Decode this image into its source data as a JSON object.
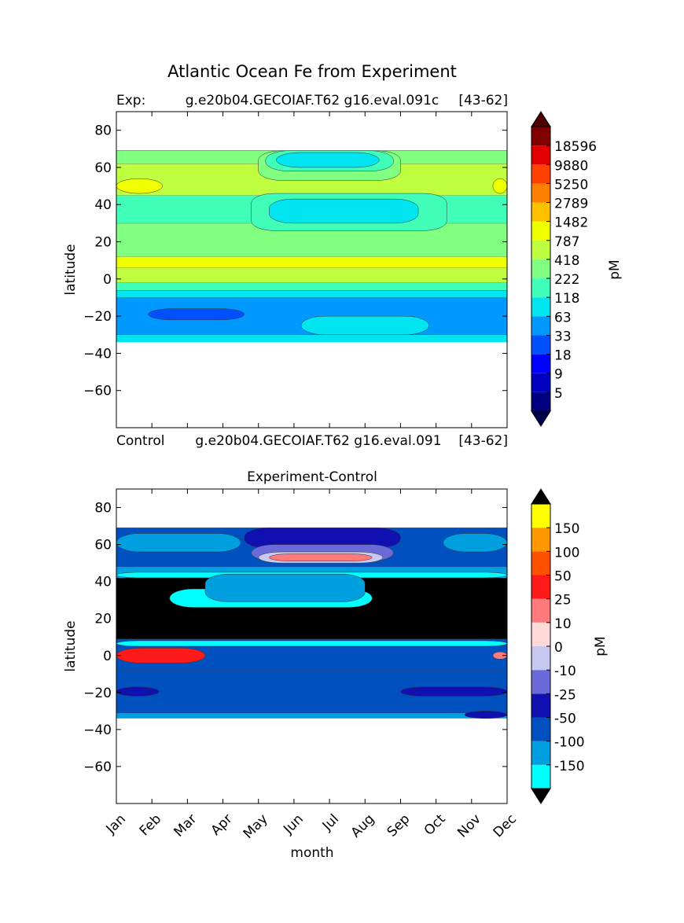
{
  "figure_title": "Atlantic Ocean Fe from Experiment",
  "chart_data": [
    {
      "type": "heatmap",
      "subtype": "filled-contour",
      "title_left": "Exp:",
      "title_center": "g.e20b04.GECOIAF.T62 g16.eval.091c",
      "title_right": "[43-62]",
      "ylabel": "latitude",
      "xlabel": "",
      "ylim": [
        -80,
        90
      ],
      "yticks": [
        80,
        60,
        40,
        20,
        0,
        -20,
        -40,
        -60
      ],
      "ytick_labels": [
        "80",
        "60",
        "40",
        "20",
        "0",
        "−20",
        "−40",
        "−60"
      ],
      "x": [
        "Jan",
        "Feb",
        "Mar",
        "Apr",
        "May",
        "Jun",
        "Jul",
        "Aug",
        "Sep",
        "Oct",
        "Nov",
        "Dec"
      ],
      "data_lat_range": [
        -34,
        69
      ],
      "colorbar": {
        "label": "pM",
        "extend": "both",
        "tick_labels": [
          "5",
          "9",
          "18",
          "33",
          "63",
          "118",
          "222",
          "418",
          "787",
          "1482",
          "2789",
          "5250",
          "9880",
          "18596"
        ],
        "colors": [
          "#000080",
          "#0000c0",
          "#0000ff",
          "#0050ff",
          "#0099ff",
          "#00e5f0",
          "#40ffb8",
          "#80ff80",
          "#c0ff40",
          "#f0ff00",
          "#ffc000",
          "#ff7f00",
          "#ff4000",
          "#e00000",
          "#800000"
        ],
        "under_color": "#00004c",
        "over_color": "#4c0000"
      },
      "bands": [
        {
          "lat": [
            -34,
            -30
          ],
          "color_index": 5
        },
        {
          "lat": [
            -30,
            -10
          ],
          "color_index": 4
        },
        {
          "lat": [
            -10,
            -6
          ],
          "color_index": 5
        },
        {
          "lat": [
            -6,
            -2
          ],
          "color_index": 6
        },
        {
          "lat": [
            -2,
            6
          ],
          "color_index": 8
        },
        {
          "lat": [
            6,
            12
          ],
          "color_index": 9
        },
        {
          "lat": [
            12,
            30
          ],
          "color_index": 7
        },
        {
          "lat": [
            30,
            45
          ],
          "color_index": 6
        },
        {
          "lat": [
            45,
            62
          ],
          "color_index": 8
        },
        {
          "lat": [
            62,
            69
          ],
          "color_index": 7
        }
      ],
      "features": [
        {
          "kind": "patch",
          "lat": [
            -30,
            -20
          ],
          "month": [
            5.2,
            8.8
          ],
          "color_index": 5
        },
        {
          "kind": "patch",
          "lat": [
            -22,
            -16
          ],
          "month": [
            0.9,
            3.6
          ],
          "color_index": 3
        },
        {
          "kind": "patch",
          "lat": [
            26,
            46
          ],
          "month": [
            3.8,
            9.3
          ],
          "color_index": 6
        },
        {
          "kind": "patch",
          "lat": [
            30,
            43
          ],
          "month": [
            4.3,
            8.5
          ],
          "color_index": 5
        },
        {
          "kind": "patch",
          "lat": [
            46,
            54
          ],
          "month": [
            0,
            1.3
          ],
          "color_index": 9
        },
        {
          "kind": "patch",
          "lat": [
            46,
            54
          ],
          "month": [
            10.6,
            11
          ],
          "color_index": 9
        },
        {
          "kind": "patch",
          "lat": [
            53,
            69
          ],
          "month": [
            4.0,
            8.0
          ],
          "color_index": 7
        },
        {
          "kind": "patch",
          "lat": [
            58,
            69
          ],
          "month": [
            4.2,
            7.8
          ],
          "color_index": 6
        },
        {
          "kind": "patch",
          "lat": [
            60,
            68
          ],
          "month": [
            4.5,
            7.4
          ],
          "color_index": 5
        }
      ]
    },
    {
      "type": "heatmap",
      "subtype": "filled-contour",
      "title": "Experiment-Control",
      "ylabel": "latitude",
      "xlabel": "month",
      "ylim": [
        -80,
        90
      ],
      "yticks": [
        80,
        60,
        40,
        20,
        0,
        -20,
        -40,
        -60
      ],
      "ytick_labels": [
        "80",
        "60",
        "40",
        "20",
        "0",
        "−20",
        "−40",
        "−60"
      ],
      "x": [
        "Jan",
        "Feb",
        "Mar",
        "Apr",
        "May",
        "Jun",
        "Jul",
        "Aug",
        "Sep",
        "Oct",
        "Nov",
        "Dec"
      ],
      "data_lat_range": [
        -34,
        69
      ],
      "colorbar": {
        "label": "pM",
        "extend": "both",
        "tick_labels": [
          "-150",
          "-100",
          "-50",
          "-25",
          "-10",
          "0",
          "10",
          "25",
          "50",
          "100",
          "150"
        ],
        "colors": [
          "#00ffff",
          "#00a0e0",
          "#0050c0",
          "#1010b0",
          "#6a6ad8",
          "#c8c8f0",
          "#ffd8d8",
          "#ff7a7a",
          "#ff1a1a",
          "#ff5000",
          "#ff9800",
          "#ffff00"
        ],
        "under_color": "#000000",
        "over_color": "#000000"
      },
      "bands": [
        {
          "lat": [
            -34,
            -31
          ],
          "color_index": 1
        },
        {
          "lat": [
            -31,
            -8
          ],
          "color_index": 2
        },
        {
          "lat": [
            -8,
            9
          ],
          "color_index": 2
        },
        {
          "lat": [
            9,
            42
          ],
          "color_index": -1
        },
        {
          "lat": [
            42,
            48
          ],
          "color_index": 1
        },
        {
          "lat": [
            48,
            69
          ],
          "color_index": 2
        }
      ],
      "features": [
        {
          "kind": "patch",
          "lat": [
            42,
            45
          ],
          "month": [
            0,
            11
          ],
          "color_index": 0
        },
        {
          "kind": "patch",
          "lat": [
            26,
            36
          ],
          "month": [
            1.5,
            7.2
          ],
          "color_index": 0
        },
        {
          "kind": "patch",
          "lat": [
            29,
            44
          ],
          "month": [
            2.5,
            7.0
          ],
          "color_index": 1
        },
        {
          "kind": "patch",
          "lat": [
            5,
            8
          ],
          "month": [
            0,
            11
          ],
          "color_index": 0
        },
        {
          "kind": "patch",
          "lat": [
            -4,
            4
          ],
          "month": [
            0,
            2.5
          ],
          "color_index": 8
        },
        {
          "kind": "patch",
          "lat": [
            -2,
            2
          ],
          "month": [
            10.6,
            11
          ],
          "color_index": 7
        },
        {
          "kind": "patch",
          "lat": [
            -22,
            -17
          ],
          "month": [
            0,
            1.2
          ],
          "color_index": 3
        },
        {
          "kind": "patch",
          "lat": [
            -22,
            -17
          ],
          "month": [
            8.0,
            11
          ],
          "color_index": 3
        },
        {
          "kind": "patch",
          "lat": [
            -34,
            -30
          ],
          "month": [
            9.8,
            11
          ],
          "color_index": 3
        },
        {
          "kind": "patch",
          "lat": [
            56,
            66
          ],
          "month": [
            0,
            3.5
          ],
          "color_index": 1
        },
        {
          "kind": "patch",
          "lat": [
            56,
            66
          ],
          "month": [
            9.2,
            11
          ],
          "color_index": 1
        },
        {
          "kind": "patch",
          "lat": [
            58,
            69
          ],
          "month": [
            3.6,
            8.0
          ],
          "color_index": 3
        },
        {
          "kind": "patch",
          "lat": [
            51,
            60
          ],
          "month": [
            3.8,
            7.8
          ],
          "color_index": 4
        },
        {
          "kind": "patch",
          "lat": [
            50,
            56
          ],
          "month": [
            4.0,
            7.5
          ],
          "color_index": 5
        },
        {
          "kind": "patch",
          "lat": [
            51,
            55
          ],
          "month": [
            4.3,
            7.2
          ],
          "color_index": 7
        }
      ]
    }
  ],
  "middle_label": {
    "left": "Control",
    "center": "g.e20b04.GECOIAF.T62 g16.eval.091",
    "right": "[43-62]"
  }
}
